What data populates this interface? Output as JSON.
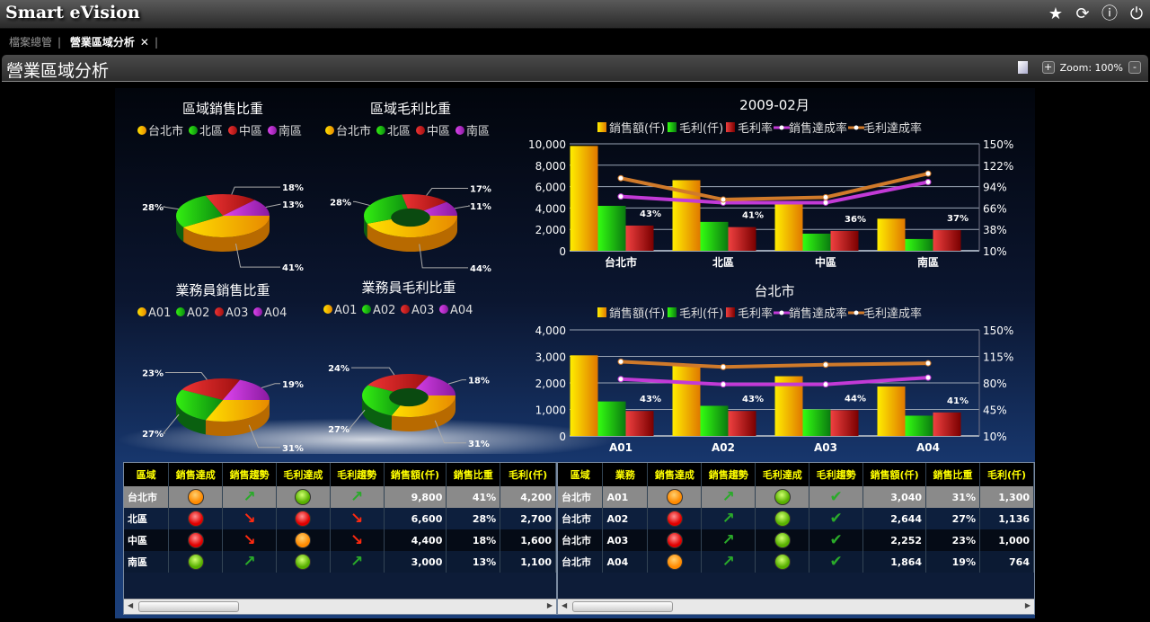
{
  "app": {
    "title": "Smart eVision",
    "icons": [
      "star-icon",
      "refresh-icon",
      "help-icon",
      "power-icon"
    ]
  },
  "tabs": [
    {
      "label": "檔案總管",
      "active": false
    },
    {
      "label": "營業區域分析",
      "active": true,
      "close": "✕"
    }
  ],
  "page": {
    "title": "營業區域分析",
    "zoom_label": "Zoom: 100%",
    "zoom_in": "+",
    "zoom_out": "-"
  },
  "colors": {
    "sales": "#f5b800",
    "profit": "#22c80a",
    "margin": "#d42a2a",
    "purple": "#c23ad6",
    "brown": "#d07a2a"
  },
  "chart_data": [
    {
      "type": "pie",
      "title": "區域銷售比重",
      "categories": [
        "台北市",
        "北區",
        "中區",
        "南區"
      ],
      "values": [
        41,
        28,
        18,
        13
      ],
      "labels": [
        "41%",
        "28%",
        "18%",
        "13%"
      ],
      "donut": false
    },
    {
      "type": "pie",
      "title": "區域毛利比重",
      "categories": [
        "台北市",
        "北區",
        "中區",
        "南區"
      ],
      "values": [
        44,
        28,
        17,
        11
      ],
      "labels": [
        "44%",
        "28%",
        "17%",
        "11%"
      ],
      "donut": true
    },
    {
      "type": "pie",
      "title": "業務員銷售比重",
      "categories": [
        "A01",
        "A02",
        "A03",
        "A04"
      ],
      "values": [
        31,
        27,
        23,
        19
      ],
      "labels": [
        "31%",
        "27%",
        "23%",
        "19%"
      ],
      "donut": false
    },
    {
      "type": "pie",
      "title": "業務員毛利比重",
      "categories": [
        "A01",
        "A02",
        "A03",
        "A04"
      ],
      "values": [
        31,
        27,
        24,
        18
      ],
      "labels": [
        "31%",
        "27%",
        "24%",
        "18%"
      ],
      "donut": true
    },
    {
      "type": "bar",
      "title": "2009-02月",
      "categories": [
        "台北市",
        "北區",
        "中區",
        "南區"
      ],
      "ylim": [
        0,
        10000
      ],
      "yticks": [
        "0",
        "2,000",
        "4,000",
        "6,000",
        "8,000",
        "10,000"
      ],
      "y2lim": [
        10,
        150
      ],
      "y2ticks": [
        "10%",
        "38%",
        "66%",
        "94%",
        "122%",
        "150%"
      ],
      "series": [
        {
          "name": "銷售額(仟)",
          "axis": "left",
          "type": "bar",
          "values": [
            9800,
            6600,
            4400,
            3000
          ]
        },
        {
          "name": "毛利(仟)",
          "axis": "left",
          "type": "bar",
          "values": [
            4200,
            2700,
            1600,
            1100
          ]
        },
        {
          "name": "毛利率",
          "axis": "right",
          "type": "bar",
          "values": [
            43,
            41,
            36,
            37
          ],
          "labels": [
            "43%",
            "41%",
            "36%",
            "37%"
          ]
        },
        {
          "name": "銷售達成率",
          "axis": "right",
          "type": "line",
          "values": [
            81,
            73,
            73,
            100
          ]
        },
        {
          "name": "毛利達成率",
          "axis": "right",
          "type": "line",
          "values": [
            105,
            77,
            80,
            111
          ]
        }
      ],
      "legend": "top"
    },
    {
      "type": "bar",
      "title": "台北市",
      "categories": [
        "A01",
        "A02",
        "A03",
        "A04"
      ],
      "ylim": [
        0,
        4000
      ],
      "yticks": [
        "0",
        "1,000",
        "2,000",
        "3,000",
        "4,000"
      ],
      "y2lim": [
        10,
        150
      ],
      "y2ticks": [
        "10%",
        "45%",
        "80%",
        "115%",
        "150%"
      ],
      "series": [
        {
          "name": "銷售額(仟)",
          "axis": "left",
          "type": "bar",
          "values": [
            3040,
            2644,
            2252,
            1864
          ]
        },
        {
          "name": "毛利(仟)",
          "axis": "left",
          "type": "bar",
          "values": [
            1300,
            1136,
            1000,
            764
          ]
        },
        {
          "name": "毛利率",
          "axis": "right",
          "type": "bar",
          "values": [
            43,
            43,
            44,
            41
          ],
          "labels": [
            "43%",
            "43%",
            "44%",
            "41%"
          ]
        },
        {
          "name": "銷售達成率",
          "axis": "right",
          "type": "line",
          "values": [
            85,
            78,
            78,
            87
          ]
        },
        {
          "name": "毛利達成率",
          "axis": "right",
          "type": "line",
          "values": [
            108,
            101,
            104,
            106
          ]
        }
      ],
      "legend": "top"
    }
  ],
  "region_table": {
    "headers": [
      "區域",
      "銷售達成",
      "銷售趨勢",
      "毛利達成",
      "毛利趨勢",
      "銷售額(仟)",
      "銷售比重",
      "毛利(仟)"
    ],
    "rows": [
      [
        "台北市",
        "orange",
        "up",
        "green",
        "up",
        "9,800",
        "41%",
        "4,200"
      ],
      [
        "北區",
        "red",
        "down",
        "red",
        "down",
        "6,600",
        "28%",
        "2,700"
      ],
      [
        "中區",
        "red",
        "down",
        "orange",
        "down",
        "4,400",
        "18%",
        "1,600"
      ],
      [
        "南區",
        "green",
        "up",
        "green",
        "up",
        "3,000",
        "13%",
        "1,100"
      ]
    ]
  },
  "rep_table": {
    "headers": [
      "區域",
      "業務",
      "銷售達成",
      "銷售趨勢",
      "毛利達成",
      "毛利趨勢",
      "銷售額(仟)",
      "銷售比重",
      "毛利(仟)"
    ],
    "rows": [
      [
        "台北市",
        "A01",
        "orange",
        "up",
        "green",
        "check",
        "3,040",
        "31%",
        "1,300"
      ],
      [
        "台北市",
        "A02",
        "red",
        "up",
        "green",
        "check",
        "2,644",
        "27%",
        "1,136"
      ],
      [
        "台北市",
        "A03",
        "red",
        "up",
        "green",
        "check",
        "2,252",
        "23%",
        "1,000"
      ],
      [
        "台北市",
        "A04",
        "orange",
        "up",
        "green",
        "check",
        "1,864",
        "19%",
        "764"
      ]
    ]
  }
}
